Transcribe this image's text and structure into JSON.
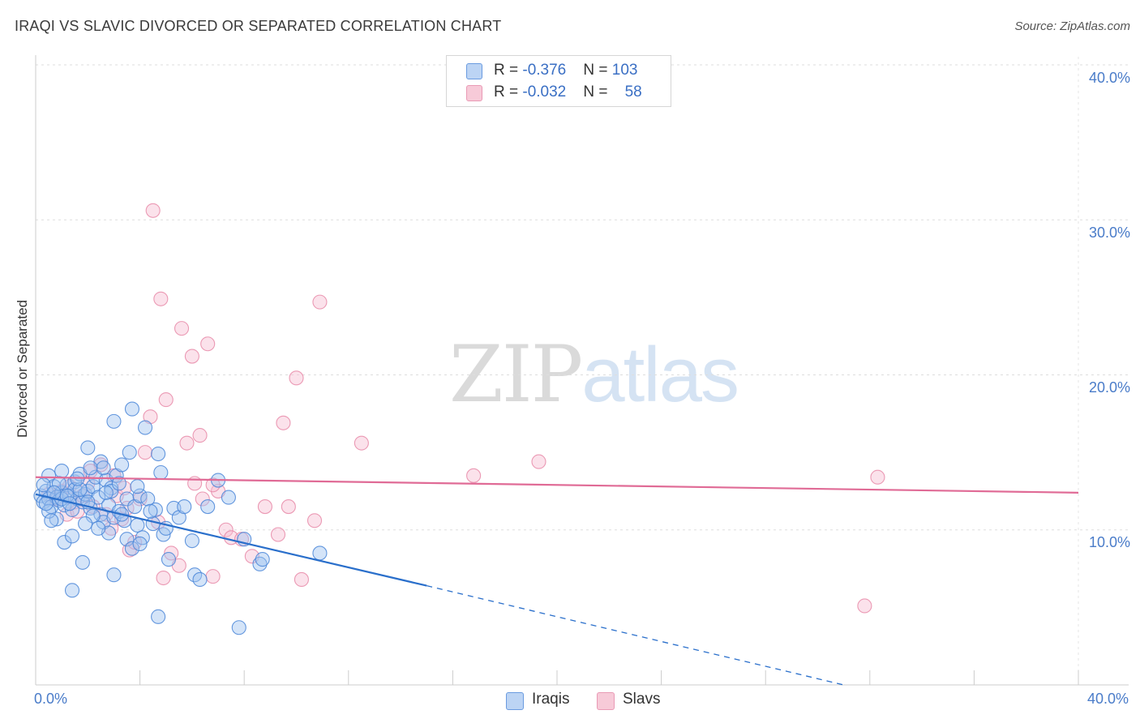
{
  "title": "IRAQI VS SLAVIC DIVORCED OR SEPARATED CORRELATION CHART",
  "source": "Source: ZipAtlas.com",
  "watermark": {
    "zip": "ZIP",
    "atlas": "atlas"
  },
  "legend": {
    "iraqis": {
      "r_label": "R = ",
      "r": "-0.376",
      "n_label": "N = ",
      "n": "103"
    },
    "slavs": {
      "r_label": "R = ",
      "r": "-0.032",
      "n_label": "N = ",
      "n": "58"
    }
  },
  "bottom_legend": {
    "iraqis": "Iraqis",
    "slavs": "Slavs"
  },
  "colors": {
    "iraqis": "#4a86d8",
    "slavs": "#e88aa8",
    "iraqis_line": "#2a6fcb",
    "slavs_line": "#e06b96",
    "tick_text": "#4a7cc9"
  },
  "chart_data": {
    "type": "scatter",
    "title": "IRAQI VS SLAVIC DIVORCED OR SEPARATED CORRELATION CHART",
    "xlabel": "",
    "ylabel": "Divorced or Separated",
    "xlim": [
      0,
      40
    ],
    "ylim": [
      0,
      40
    ],
    "x_tick_labels": [
      "0.0%",
      "40.0%"
    ],
    "y_ticks": [
      10,
      20,
      30,
      40
    ],
    "y_tick_labels": [
      "10.0%",
      "20.0%",
      "30.0%",
      "40.0%"
    ],
    "grid": true,
    "legend_placement": "top-center",
    "series": [
      {
        "name": "Iraqis",
        "r": -0.376,
        "n": 103,
        "trend": {
          "x": [
            0,
            15.0
          ],
          "y": [
            12.3,
            6.4
          ],
          "dashed_to": [
            31.0,
            0
          ]
        },
        "points": [
          [
            0.2,
            12.2
          ],
          [
            0.3,
            11.8
          ],
          [
            0.4,
            12.5
          ],
          [
            0.5,
            12.0
          ],
          [
            0.5,
            13.5
          ],
          [
            0.6,
            11.5
          ],
          [
            0.7,
            12.8
          ],
          [
            0.8,
            12.1
          ],
          [
            0.9,
            11.9
          ],
          [
            1.0,
            13.8
          ],
          [
            1.0,
            12.4
          ],
          [
            1.1,
            11.6
          ],
          [
            1.2,
            12.9
          ],
          [
            1.3,
            12.2
          ],
          [
            1.4,
            11.3
          ],
          [
            1.5,
            13.1
          ],
          [
            1.5,
            12.6
          ],
          [
            1.6,
            12.0
          ],
          [
            1.7,
            13.6
          ],
          [
            1.8,
            11.8
          ],
          [
            1.9,
            12.3
          ],
          [
            2.0,
            15.3
          ],
          [
            2.0,
            12.5
          ],
          [
            2.1,
            11.4
          ],
          [
            2.2,
            12.8
          ],
          [
            2.3,
            13.4
          ],
          [
            2.4,
            12.1
          ],
          [
            2.5,
            14.4
          ],
          [
            2.5,
            11.0
          ],
          [
            2.6,
            10.5
          ],
          [
            2.7,
            13.2
          ],
          [
            2.8,
            11.6
          ],
          [
            2.9,
            12.7
          ],
          [
            3.0,
            17.0
          ],
          [
            3.0,
            10.8
          ],
          [
            3.1,
            13.5
          ],
          [
            3.2,
            11.2
          ],
          [
            3.3,
            14.2
          ],
          [
            3.4,
            10.6
          ],
          [
            3.5,
            12.0
          ],
          [
            3.6,
            15.0
          ],
          [
            3.7,
            17.8
          ],
          [
            3.8,
            11.5
          ],
          [
            3.9,
            10.3
          ],
          [
            4.0,
            12.2
          ],
          [
            4.1,
            9.5
          ],
          [
            4.2,
            16.6
          ],
          [
            4.3,
            12.0
          ],
          [
            4.5,
            10.4
          ],
          [
            4.6,
            11.3
          ],
          [
            4.7,
            14.9
          ],
          [
            4.8,
            13.7
          ],
          [
            4.9,
            9.7
          ],
          [
            5.0,
            10.1
          ],
          [
            5.1,
            8.1
          ],
          [
            5.3,
            11.4
          ],
          [
            5.5,
            10.8
          ],
          [
            5.7,
            11.5
          ],
          [
            6.0,
            9.3
          ],
          [
            6.1,
            7.1
          ],
          [
            6.3,
            6.8
          ],
          [
            6.6,
            11.5
          ],
          [
            7.0,
            13.2
          ],
          [
            7.4,
            12.1
          ],
          [
            7.8,
            3.7
          ],
          [
            8.0,
            9.4
          ],
          [
            8.6,
            7.8
          ],
          [
            8.7,
            8.1
          ],
          [
            10.9,
            8.5
          ],
          [
            1.4,
            6.1
          ],
          [
            1.8,
            7.9
          ],
          [
            2.8,
            9.8
          ],
          [
            3.0,
            7.1
          ],
          [
            3.5,
            9.4
          ],
          [
            4.7,
            4.4
          ],
          [
            1.1,
            9.2
          ],
          [
            1.4,
            9.6
          ],
          [
            2.0,
            11.8
          ],
          [
            2.2,
            10.9
          ],
          [
            2.9,
            12.5
          ],
          [
            3.3,
            11.0
          ],
          [
            0.8,
            10.7
          ],
          [
            1.0,
            12.0
          ],
          [
            0.5,
            11.2
          ],
          [
            0.6,
            10.6
          ],
          [
            1.2,
            12.2
          ],
          [
            1.7,
            12.6
          ],
          [
            2.6,
            14.0
          ],
          [
            2.4,
            10.1
          ],
          [
            3.7,
            8.8
          ],
          [
            4.4,
            11.2
          ],
          [
            0.3,
            12.9
          ],
          [
            0.9,
            13.0
          ],
          [
            1.6,
            13.3
          ],
          [
            2.1,
            14.0
          ],
          [
            2.7,
            12.4
          ],
          [
            3.2,
            13.0
          ],
          [
            3.9,
            12.8
          ],
          [
            1.3,
            11.7
          ],
          [
            0.7,
            12.4
          ],
          [
            0.4,
            11.7
          ],
          [
            1.9,
            10.4
          ],
          [
            4.0,
            9.1
          ]
        ]
      },
      {
        "name": "Slavs",
        "r": -0.032,
        "n": 58,
        "trend": {
          "x": [
            0,
            40
          ],
          "y": [
            13.4,
            12.4
          ]
        },
        "points": [
          [
            0.5,
            12.3
          ],
          [
            0.8,
            12.0
          ],
          [
            1.0,
            12.5
          ],
          [
            1.3,
            12.8
          ],
          [
            1.5,
            11.8
          ],
          [
            1.8,
            12.2
          ],
          [
            2.0,
            13.0
          ],
          [
            2.2,
            11.5
          ],
          [
            2.5,
            14.2
          ],
          [
            2.7,
            11.0
          ],
          [
            3.0,
            13.5
          ],
          [
            3.1,
            12.2
          ],
          [
            3.3,
            10.7
          ],
          [
            3.5,
            11.4
          ],
          [
            3.6,
            8.7
          ],
          [
            3.8,
            9.2
          ],
          [
            4.0,
            12.0
          ],
          [
            4.2,
            15.0
          ],
          [
            4.4,
            17.3
          ],
          [
            4.5,
            30.6
          ],
          [
            4.7,
            10.5
          ],
          [
            4.8,
            24.9
          ],
          [
            5.0,
            18.4
          ],
          [
            5.2,
            8.5
          ],
          [
            5.5,
            7.7
          ],
          [
            5.6,
            23.0
          ],
          [
            5.8,
            15.6
          ],
          [
            6.0,
            21.2
          ],
          [
            6.1,
            13.0
          ],
          [
            6.3,
            16.1
          ],
          [
            6.4,
            12.0
          ],
          [
            6.6,
            22.0
          ],
          [
            6.8,
            7.0
          ],
          [
            7.0,
            12.5
          ],
          [
            7.3,
            10.0
          ],
          [
            7.5,
            9.5
          ],
          [
            7.9,
            9.4
          ],
          [
            8.3,
            8.3
          ],
          [
            8.8,
            11.5
          ],
          [
            9.3,
            9.7
          ],
          [
            9.5,
            16.9
          ],
          [
            9.7,
            11.5
          ],
          [
            10.0,
            19.8
          ],
          [
            10.2,
            6.8
          ],
          [
            10.7,
            10.6
          ],
          [
            10.9,
            24.7
          ],
          [
            12.5,
            15.6
          ],
          [
            16.8,
            13.5
          ],
          [
            19.3,
            14.4
          ],
          [
            31.8,
            5.1
          ],
          [
            32.3,
            13.4
          ],
          [
            1.2,
            11.0
          ],
          [
            2.1,
            13.8
          ],
          [
            2.9,
            10.1
          ],
          [
            4.9,
            6.9
          ],
          [
            6.8,
            12.9
          ],
          [
            3.4,
            12.7
          ],
          [
            1.6,
            11.2
          ]
        ]
      }
    ]
  }
}
